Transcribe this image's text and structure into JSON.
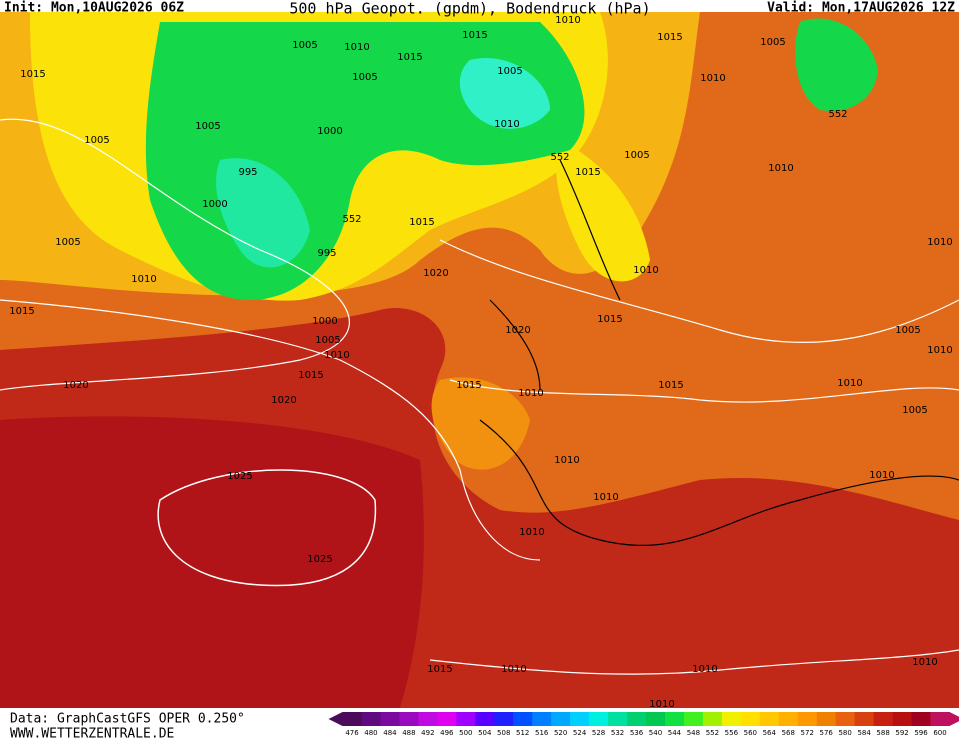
{
  "header": {
    "init": "Init: Mon,10AUG2026 06Z",
    "title": "500 hPa Geopot. (gpdm), Bodendruck (hPa)",
    "valid": "Valid: Mon,17AUG2026 12Z"
  },
  "footer": {
    "data": "Data: GraphCastGFS OPER 0.250°",
    "site": "WWW.WETTERZENTRALE.DE"
  },
  "colorbar": {
    "ticks": [
      476,
      480,
      484,
      488,
      492,
      496,
      500,
      504,
      508,
      512,
      516,
      520,
      524,
      528,
      532,
      536,
      540,
      544,
      548,
      552,
      556,
      560,
      564,
      568,
      572,
      576,
      580,
      584,
      588,
      592,
      596,
      600
    ],
    "colors": [
      "#4b0a5a",
      "#600a80",
      "#7a0aa0",
      "#9a0ac0",
      "#c00ae0",
      "#e000f0",
      "#a000ff",
      "#5a00ff",
      "#2020ff",
      "#0050ff",
      "#0080ff",
      "#00a8ff",
      "#00d0ff",
      "#00f0e0",
      "#00e0a0",
      "#00d070",
      "#00c850",
      "#10e040",
      "#40f020",
      "#a0f000",
      "#f0f000",
      "#ffe000",
      "#ffc800",
      "#ffb000",
      "#ff9800",
      "#f08000",
      "#e86010",
      "#d84010",
      "#c82010",
      "#b81010",
      "#a00020",
      "#c01060"
    ]
  },
  "map": {
    "isobar_labels": [
      1005,
      1010,
      1015,
      1010,
      1015,
      1005,
      1015,
      1005,
      1015,
      1005,
      1010,
      1005,
      1000,
      1010,
      552,
      1005,
      995,
      1005,
      552,
      1010,
      1015,
      1000,
      552,
      1015,
      1005,
      995,
      1010,
      1020,
      1010,
      1010,
      1015,
      1015,
      1000,
      1020,
      1005,
      1005,
      1010,
      1010,
      1015,
      1015,
      1010,
      1015,
      1010,
      1020,
      1020,
      1005,
      1010,
      1025,
      1010,
      1010,
      1010,
      1025,
      1015,
      1010,
      1010,
      1010,
      1010
    ]
  }
}
